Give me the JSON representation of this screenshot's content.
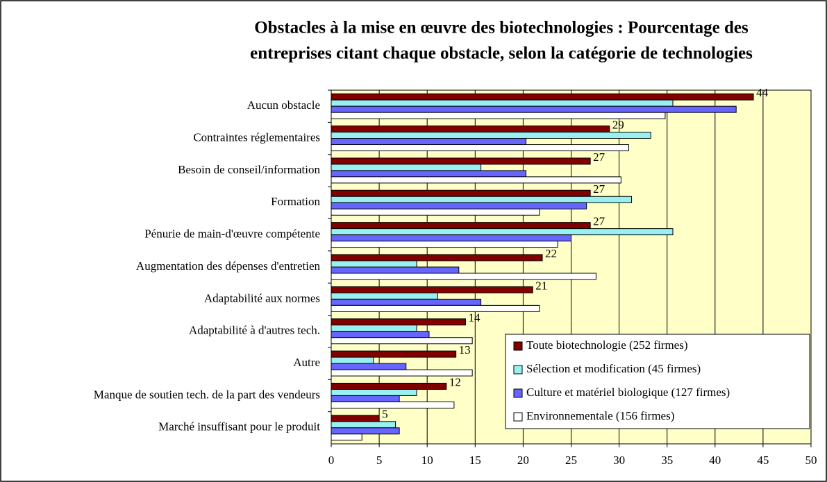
{
  "chart_data": {
    "type": "bar",
    "orientation": "horizontal",
    "title": [
      "Obstacles à la mise en œuvre des biotechnologies : Pourcentage des",
      "entreprises citant chaque obstacle, selon la catégorie de technologies"
    ],
    "categories": [
      "Aucun obstacle",
      "Contraintes réglementaires",
      "Besoin de conseil/information",
      "Formation",
      "Pénurie de main-d'œuvre compétente",
      "Augmentation des dépenses d'entretien",
      "Adaptabilité aux normes",
      "Adaptabilité à d'autres tech.",
      "Autre",
      "Manque de soutien tech. de la part des vendeurs",
      "Marché insuffisant pour le produit"
    ],
    "series": [
      {
        "name": "Toute biotechnologie (252  firmes)",
        "color": "#800000",
        "values": [
          44,
          29,
          27,
          27,
          27,
          22,
          21,
          14,
          13,
          12,
          5
        ],
        "data_labels": true
      },
      {
        "name": "Sélection et modification (45 firmes)",
        "color": "#99f0f0",
        "values": [
          35.6,
          33.3,
          15.6,
          31.3,
          35.6,
          8.9,
          11.1,
          8.9,
          4.4,
          8.9,
          6.7
        ]
      },
      {
        "name": "Culture et matériel biologique (127 firmes)",
        "color": "#6666ff",
        "values": [
          42.2,
          20.3,
          20.3,
          26.6,
          25,
          13.3,
          15.6,
          10.2,
          7.8,
          7.1,
          7.1
        ]
      },
      {
        "name": "Environnementale (156 firmes)",
        "color": "#ffffff",
        "values": [
          34.8,
          31,
          30.2,
          21.7,
          23.6,
          27.6,
          21.7,
          14.7,
          14.7,
          12.8,
          3.2
        ]
      }
    ],
    "xlim": [
      0,
      50
    ],
    "xticks": [
      0,
      5,
      10,
      15,
      20,
      25,
      30,
      35,
      40,
      45,
      50
    ],
    "grid": true,
    "legend": "bottom-right",
    "plot_background": "#ffffc8"
  }
}
